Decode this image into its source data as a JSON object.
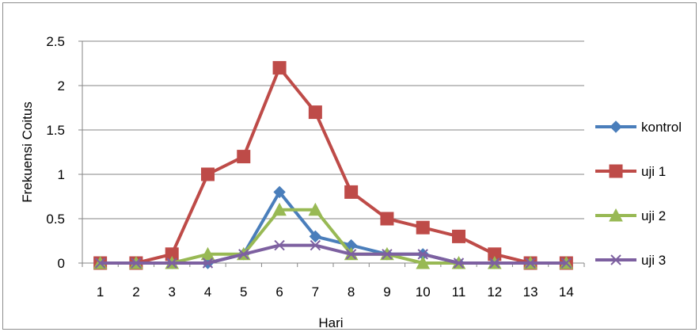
{
  "chart_data": {
    "type": "line",
    "title": "",
    "xlabel": "Hari",
    "ylabel": "Frekuensi Coitus",
    "categories": [
      "1",
      "2",
      "3",
      "4",
      "5",
      "6",
      "7",
      "8",
      "9",
      "10",
      "11",
      "12",
      "13",
      "14"
    ],
    "ylim": [
      0,
      2.5
    ],
    "yticks": [
      "0",
      "0.5",
      "1",
      "1.5",
      "2",
      "2.5"
    ],
    "grid": "horizontal",
    "legend": "right",
    "series": [
      {
        "name": "kontrol",
        "color": "#4A7EBB",
        "marker": "diamond",
        "values": [
          0,
          0,
          0,
          0,
          0.1,
          0.8,
          0.3,
          0.2,
          0.1,
          0.1,
          0,
          0,
          0,
          0
        ]
      },
      {
        "name": "uji 1",
        "color": "#BE4B48",
        "marker": "square",
        "values": [
          0,
          0,
          0.1,
          1.0,
          1.2,
          2.2,
          1.7,
          0.8,
          0.5,
          0.4,
          0.3,
          0.1,
          0,
          0
        ]
      },
      {
        "name": "uji 2",
        "color": "#98B954",
        "marker": "triangle",
        "values": [
          0,
          0,
          0,
          0.1,
          0.1,
          0.6,
          0.6,
          0.1,
          0.1,
          0,
          0,
          0,
          0,
          0
        ]
      },
      {
        "name": "uji 3",
        "color": "#7D60A0",
        "marker": "x",
        "values": [
          0,
          0,
          0,
          0,
          0.1,
          0.2,
          0.2,
          0.1,
          0.1,
          0.1,
          0,
          0,
          0,
          0
        ]
      }
    ]
  }
}
